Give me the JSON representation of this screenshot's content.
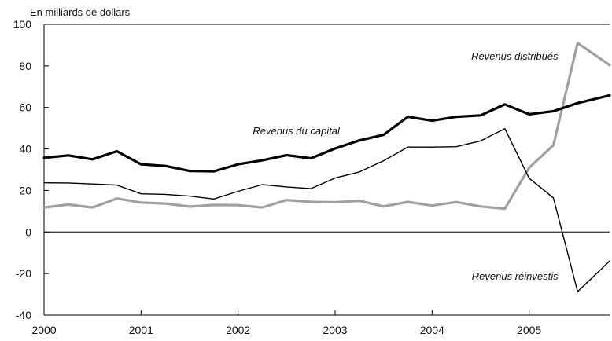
{
  "chart_data": {
    "type": "line",
    "title": "",
    "ylabel": "En milliards de dollars",
    "xlabel": "",
    "ylim": [
      -40,
      100
    ],
    "yticks": [
      100,
      80,
      60,
      40,
      20,
      0,
      -20,
      -40
    ],
    "xticks": [
      {
        "x": 0,
        "label": "2000"
      },
      {
        "x": 1,
        "label": "2001"
      },
      {
        "x": 2,
        "label": "2002"
      },
      {
        "x": 3,
        "label": "2003"
      },
      {
        "x": 4,
        "label": "2004"
      },
      {
        "x": 5,
        "label": "2005"
      }
    ],
    "xlim": [
      0,
      5.83
    ],
    "grid": false,
    "legend": "none",
    "series": [
      {
        "name": "Revenus du capital",
        "color": "#000000",
        "values": [
          [
            0.0,
            35.7
          ],
          [
            0.25,
            36.9
          ],
          [
            0.5,
            35.0
          ],
          [
            0.75,
            38.9
          ],
          [
            1.0,
            32.6
          ],
          [
            1.25,
            31.8
          ],
          [
            1.5,
            29.4
          ],
          [
            1.75,
            29.2
          ],
          [
            2.0,
            32.6
          ],
          [
            2.25,
            34.5
          ],
          [
            2.5,
            37.0
          ],
          [
            2.75,
            35.5
          ],
          [
            3.0,
            40.2
          ],
          [
            3.25,
            44.1
          ],
          [
            3.5,
            46.8
          ],
          [
            3.75,
            55.5
          ],
          [
            4.0,
            53.6
          ],
          [
            4.25,
            55.5
          ],
          [
            4.5,
            56.2
          ],
          [
            4.75,
            61.5
          ],
          [
            5.0,
            56.7
          ],
          [
            5.25,
            58.2
          ],
          [
            5.5,
            62.1
          ],
          [
            5.83,
            65.8
          ]
        ]
      },
      {
        "name": "Revenus réinvestis",
        "color": "#000000",
        "values": [
          [
            0.0,
            23.7
          ],
          [
            0.25,
            23.6
          ],
          [
            0.5,
            23.1
          ],
          [
            0.75,
            22.6
          ],
          [
            1.0,
            18.4
          ],
          [
            1.25,
            18.1
          ],
          [
            1.5,
            17.3
          ],
          [
            1.75,
            15.9
          ],
          [
            2.0,
            19.6
          ],
          [
            2.25,
            22.8
          ],
          [
            2.5,
            21.7
          ],
          [
            2.75,
            20.9
          ],
          [
            3.0,
            26.0
          ],
          [
            3.25,
            28.9
          ],
          [
            3.5,
            34.3
          ],
          [
            3.75,
            40.9
          ],
          [
            4.0,
            40.9
          ],
          [
            4.25,
            41.1
          ],
          [
            4.5,
            43.9
          ],
          [
            4.75,
            49.8
          ],
          [
            5.0,
            25.9
          ],
          [
            5.25,
            16.4
          ],
          [
            5.5,
            -28.7
          ],
          [
            5.83,
            -14.0
          ]
        ]
      },
      {
        "name": "Revenus distribués",
        "color": "#a0a0a0",
        "values": [
          [
            0.0,
            11.8
          ],
          [
            0.25,
            13.2
          ],
          [
            0.5,
            11.8
          ],
          [
            0.75,
            16.1
          ],
          [
            1.0,
            14.2
          ],
          [
            1.25,
            13.7
          ],
          [
            1.5,
            12.2
          ],
          [
            1.75,
            13.0
          ],
          [
            2.0,
            12.9
          ],
          [
            2.25,
            11.8
          ],
          [
            2.5,
            15.4
          ],
          [
            2.75,
            14.5
          ],
          [
            3.0,
            14.3
          ],
          [
            3.25,
            15.0
          ],
          [
            3.5,
            12.3
          ],
          [
            3.75,
            14.5
          ],
          [
            4.0,
            12.7
          ],
          [
            4.25,
            14.4
          ],
          [
            4.5,
            12.3
          ],
          [
            4.75,
            11.2
          ],
          [
            5.0,
            30.9
          ],
          [
            5.25,
            41.8
          ],
          [
            5.5,
            91.0
          ],
          [
            5.83,
            80.4
          ]
        ]
      }
    ],
    "annotations": [
      {
        "text": "Revenus du capital",
        "x": 2.6,
        "y": 47.0,
        "anchor": "middle"
      },
      {
        "text": "Revenus distribués",
        "x": 5.3,
        "y": 83.0,
        "anchor": "end"
      },
      {
        "text": "Revenus réinvestis",
        "x": 5.3,
        "y": -23.0,
        "anchor": "end"
      }
    ]
  }
}
